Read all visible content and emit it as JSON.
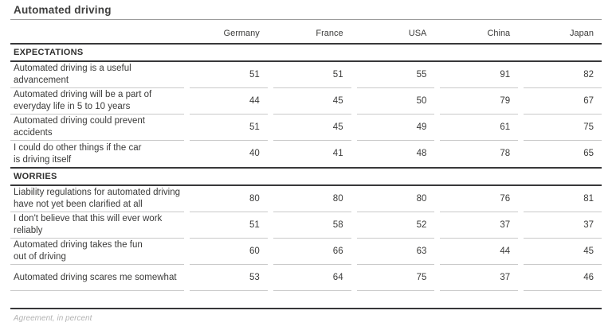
{
  "chart_data": {
    "type": "table",
    "title": "Automated driving",
    "footnote": "Agreement, in percent",
    "columns": [
      "Germany",
      "France",
      "USA",
      "China",
      "Japan"
    ],
    "sections": [
      {
        "label": "EXPECTATIONS",
        "rows": [
          {
            "label": "Automated driving is a useful\nadvancement",
            "values": [
              51,
              51,
              55,
              91,
              82
            ]
          },
          {
            "label": "Automated driving will be a part of\neveryday life in 5 to 10 years",
            "values": [
              44,
              45,
              50,
              79,
              67
            ]
          },
          {
            "label": "Automated driving could prevent\naccidents",
            "values": [
              51,
              45,
              49,
              61,
              75
            ]
          },
          {
            "label": "I could do other things if the car\nis driving itself",
            "values": [
              40,
              41,
              48,
              78,
              65
            ]
          }
        ]
      },
      {
        "label": "WORRIES",
        "rows": [
          {
            "label": "Liability regulations for automated driving\nhave not yet been clarified at all",
            "values": [
              80,
              80,
              80,
              76,
              81
            ]
          },
          {
            "label": "I don't believe that this will ever work\nreliably",
            "values": [
              51,
              58,
              52,
              37,
              37
            ]
          },
          {
            "label": "Automated driving takes the fun\nout of driving",
            "values": [
              60,
              66,
              63,
              44,
              45
            ]
          },
          {
            "label": "Automated driving scares me somewhat",
            "values": [
              53,
              64,
              75,
              37,
              46
            ]
          }
        ]
      }
    ],
    "layout": {
      "values_alignment": "right",
      "units": "percent"
    },
    "colors": {
      "text": "#3b3b3a",
      "rule_dark": "#38383a",
      "rule_light": "#c9c9c9",
      "title_underline": "#9c9c9c",
      "footnote_text": "#b3b3b3",
      "background": "#ffffff"
    }
  }
}
